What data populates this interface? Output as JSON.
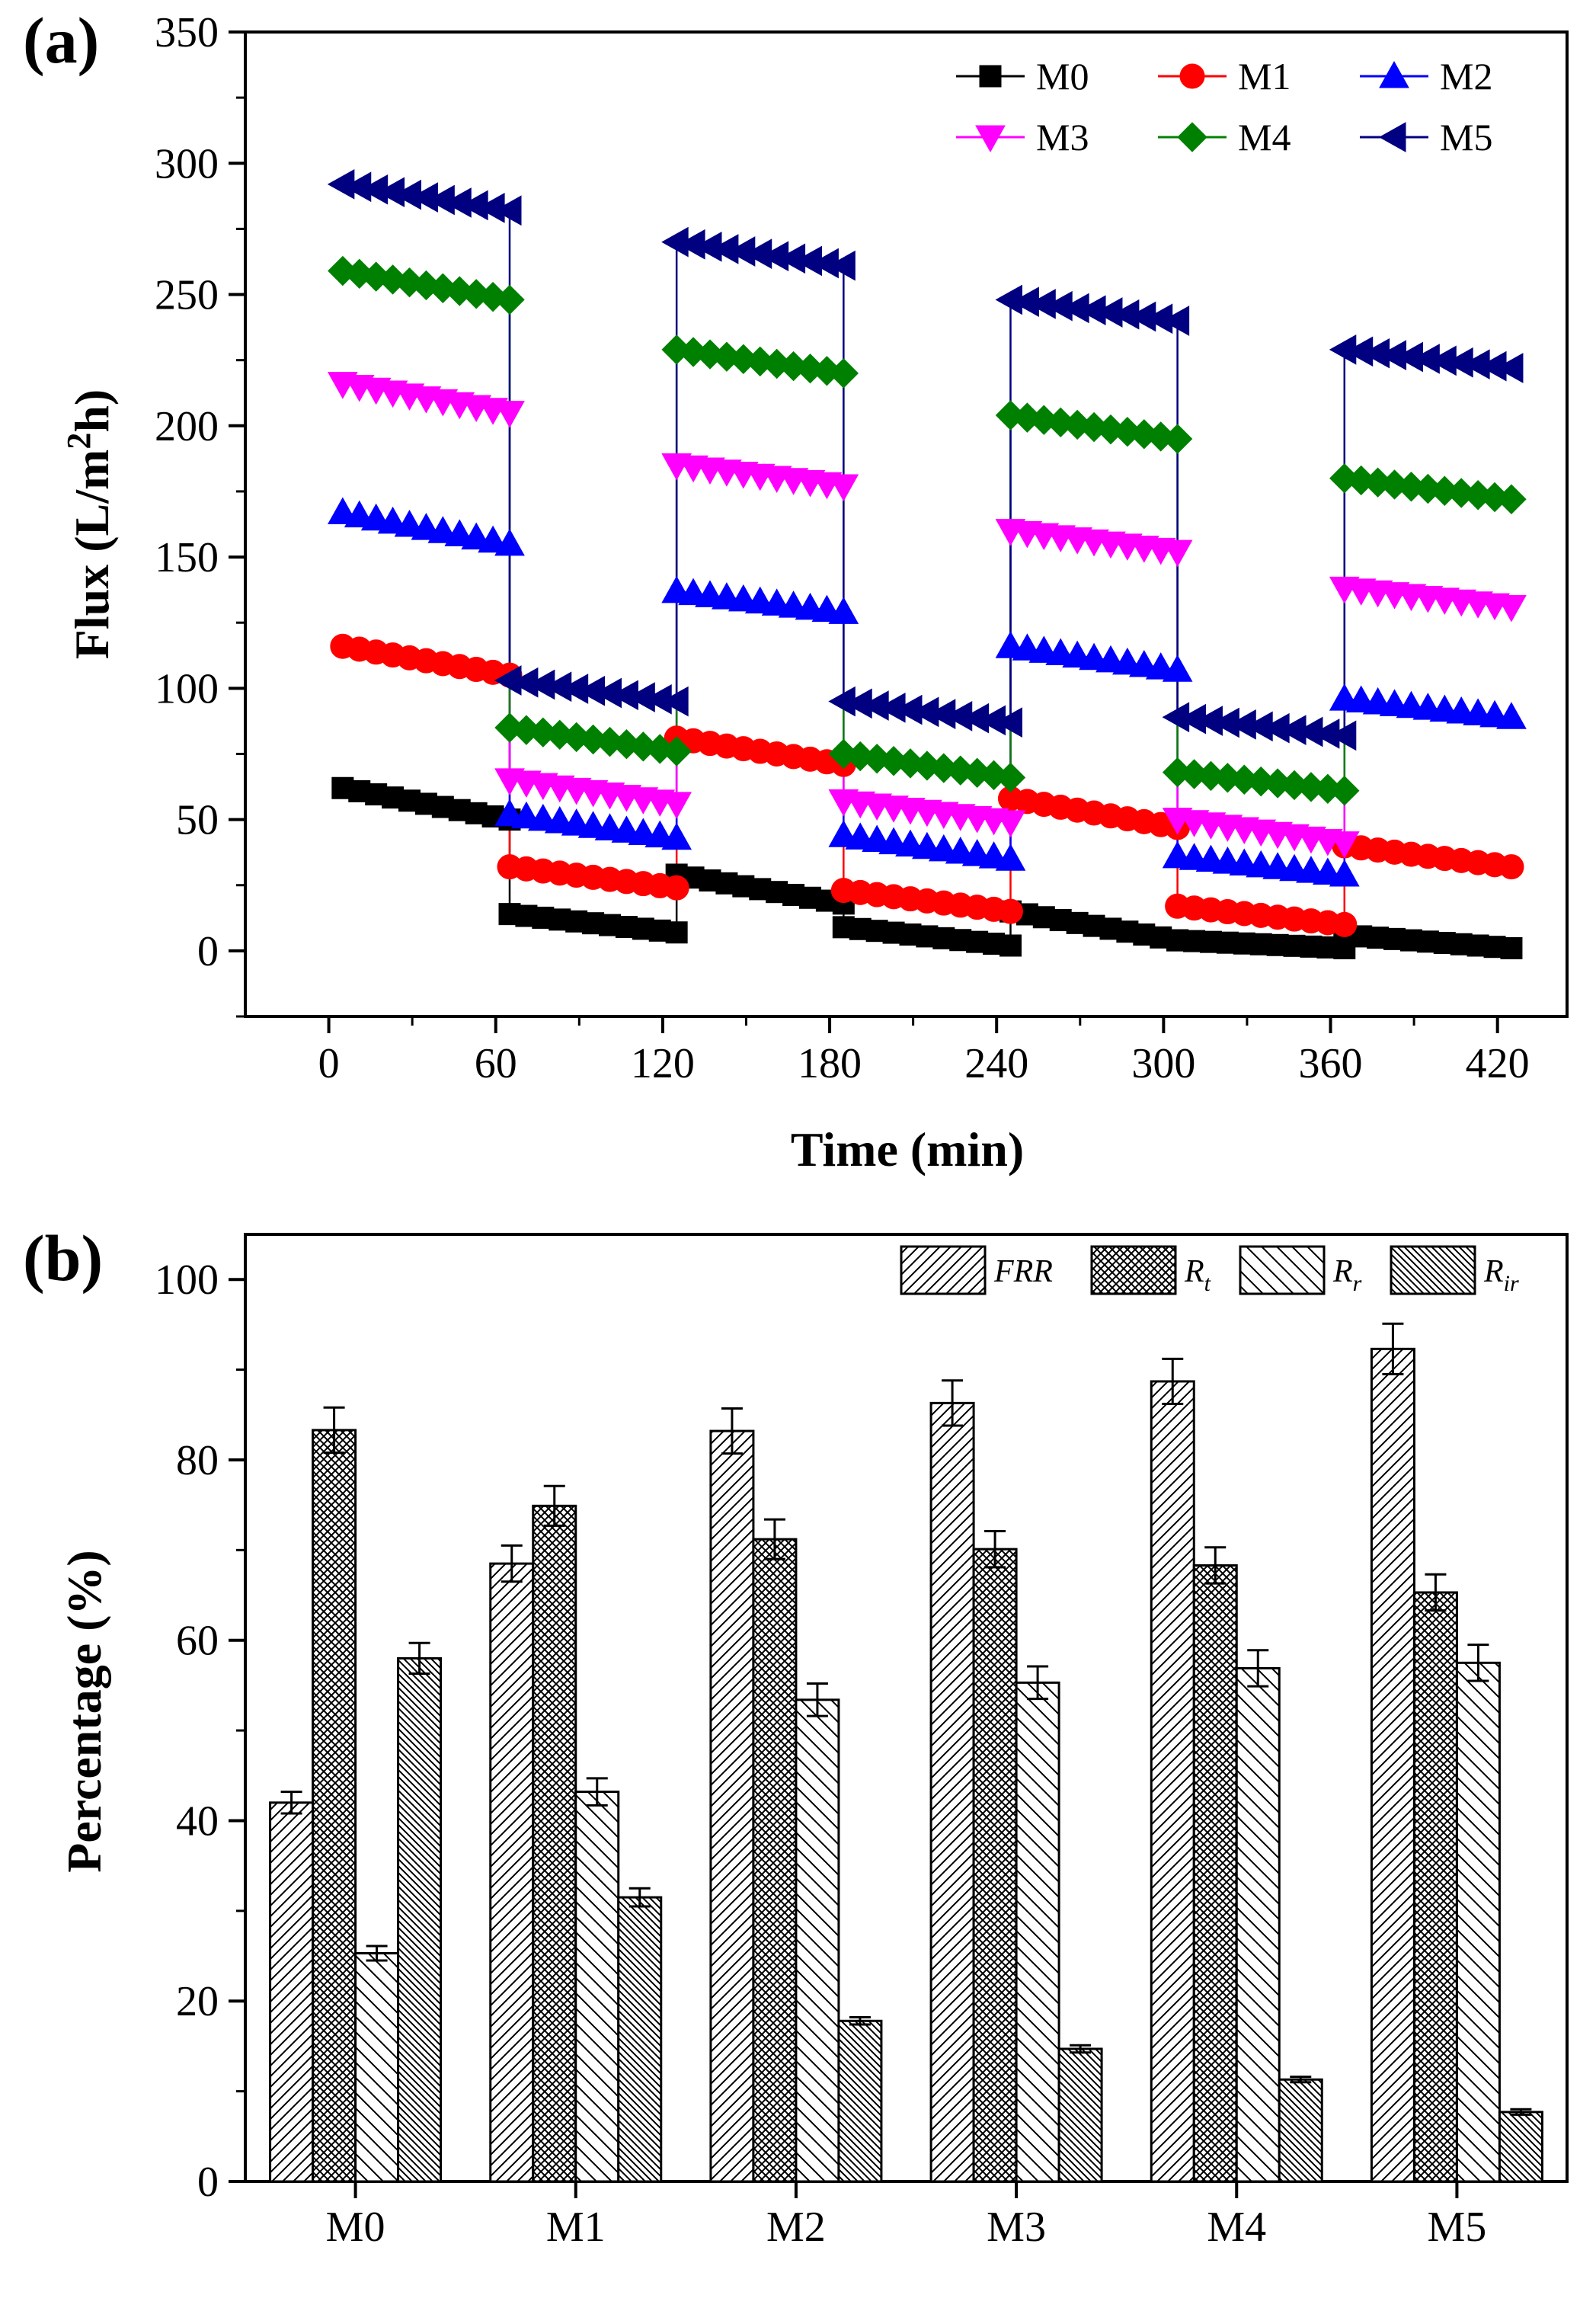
{
  "colors": {
    "M0": "#000000",
    "M1": "#ff0000",
    "M2": "#0000ff",
    "M3": "#ff00ff",
    "M4": "#008000",
    "M5": "#000080"
  },
  "chart_data": [
    {
      "panel": "(a)",
      "type": "line",
      "xlabel": "Time (min)",
      "ylabel": "Flux (L/m²h)",
      "ylabel_parts": {
        "pre": "Flux (L/m",
        "sup": "2",
        "post": "h)"
      },
      "xlim": [
        -30,
        445
      ],
      "ylim": [
        -25,
        350
      ],
      "xticks": [
        0,
        60,
        120,
        180,
        240,
        300,
        360,
        420
      ],
      "xtick_labels": [
        "0",
        "60",
        "120",
        "180",
        "240",
        "300",
        "360",
        "420"
      ],
      "yticks": [
        0,
        50,
        100,
        150,
        200,
        250,
        300,
        350
      ],
      "ytick_labels": [
        "0",
        "50",
        "100",
        "150",
        "200",
        "250",
        "300",
        "350"
      ],
      "legend_position": "top-right",
      "x": [
        [
          5,
          65
        ],
        [
          65,
          125
        ],
        [
          125,
          185
        ],
        [
          185,
          245
        ],
        [
          245,
          305
        ],
        [
          305,
          365
        ],
        [
          365,
          425
        ]
      ],
      "series": [
        {
          "name": "M0",
          "marker": "square",
          "segments": [
            [
              62,
              50
            ],
            [
              14,
              7
            ],
            [
              29,
              18
            ],
            [
              9,
              2
            ],
            [
              15,
              4
            ],
            [
              4,
              1
            ],
            [
              6,
              1
            ]
          ]
        },
        {
          "name": "M1",
          "marker": "circle",
          "segments": [
            [
              116,
              105
            ],
            [
              32,
              24
            ],
            [
              81,
              71
            ],
            [
              23,
              15
            ],
            [
              58,
              47
            ],
            [
              17,
              10
            ],
            [
              40,
              32
            ]
          ]
        },
        {
          "name": "M2",
          "marker": "triangle-up",
          "segments": [
            [
              167,
              155
            ],
            [
              52,
              43
            ],
            [
              137,
              129
            ],
            [
              44,
              35
            ],
            [
              116,
              107
            ],
            [
              36,
              29
            ],
            [
              96,
              89
            ]
          ]
        },
        {
          "name": "M3",
          "marker": "triangle-down",
          "segments": [
            [
              216,
              205
            ],
            [
              65,
              56
            ],
            [
              185,
              177
            ],
            [
              57,
              49
            ],
            [
              160,
              152
            ],
            [
              50,
              41
            ],
            [
              138,
              131
            ]
          ]
        },
        {
          "name": "M4",
          "marker": "diamond",
          "segments": [
            [
              259,
              248
            ],
            [
              85,
              76
            ],
            [
              229,
              220
            ],
            [
              75,
              66
            ],
            [
              204,
              195
            ],
            [
              68,
              61
            ],
            [
              180,
              172
            ]
          ]
        },
        {
          "name": "M5",
          "marker": "triangle-left",
          "segments": [
            [
              292,
              282
            ],
            [
              103,
              95
            ],
            [
              270,
              261
            ],
            [
              95,
              87
            ],
            [
              248,
              240
            ],
            [
              89,
              82
            ],
            [
              229,
              222
            ]
          ]
        }
      ]
    },
    {
      "panel": "(b)",
      "type": "bar",
      "xlabel": "",
      "ylabel": "Percentage (%)",
      "ylim": [
        0,
        105
      ],
      "yticks": [
        0,
        20,
        40,
        60,
        80,
        100
      ],
      "ytick_labels": [
        "0",
        "20",
        "40",
        "60",
        "80",
        "100"
      ],
      "categories": [
        "M0",
        "M1",
        "M2",
        "M3",
        "M4",
        "M5"
      ],
      "legend_position": "top-right",
      "series": [
        {
          "name": "FRR",
          "sub": "",
          "pattern": "diag-right",
          "values": [
            42,
            68.5,
            83.2,
            86.3,
            88.7,
            92.3
          ],
          "errors": [
            1.2,
            2.0,
            2.5,
            2.5,
            2.5,
            2.8
          ]
        },
        {
          "name": "R",
          "sub": "t",
          "pattern": "crosshatch",
          "values": [
            83.3,
            74.9,
            71.2,
            70.1,
            68.3,
            65.3
          ],
          "errors": [
            2.5,
            2.2,
            2.2,
            2.0,
            2.0,
            2.0
          ]
        },
        {
          "name": "R",
          "sub": "r",
          "pattern": "diag-left",
          "values": [
            25.3,
            43.2,
            53.4,
            55.3,
            56.9,
            57.5
          ],
          "errors": [
            0.8,
            1.5,
            1.8,
            1.8,
            2.0,
            2.0
          ]
        },
        {
          "name": "R",
          "sub": "ir",
          "pattern": "diag-left-dense",
          "values": [
            58.0,
            31.5,
            17.8,
            14.7,
            11.3,
            7.7
          ],
          "errors": [
            1.7,
            1.0,
            0.4,
            0.4,
            0.3,
            0.3
          ]
        }
      ]
    }
  ]
}
